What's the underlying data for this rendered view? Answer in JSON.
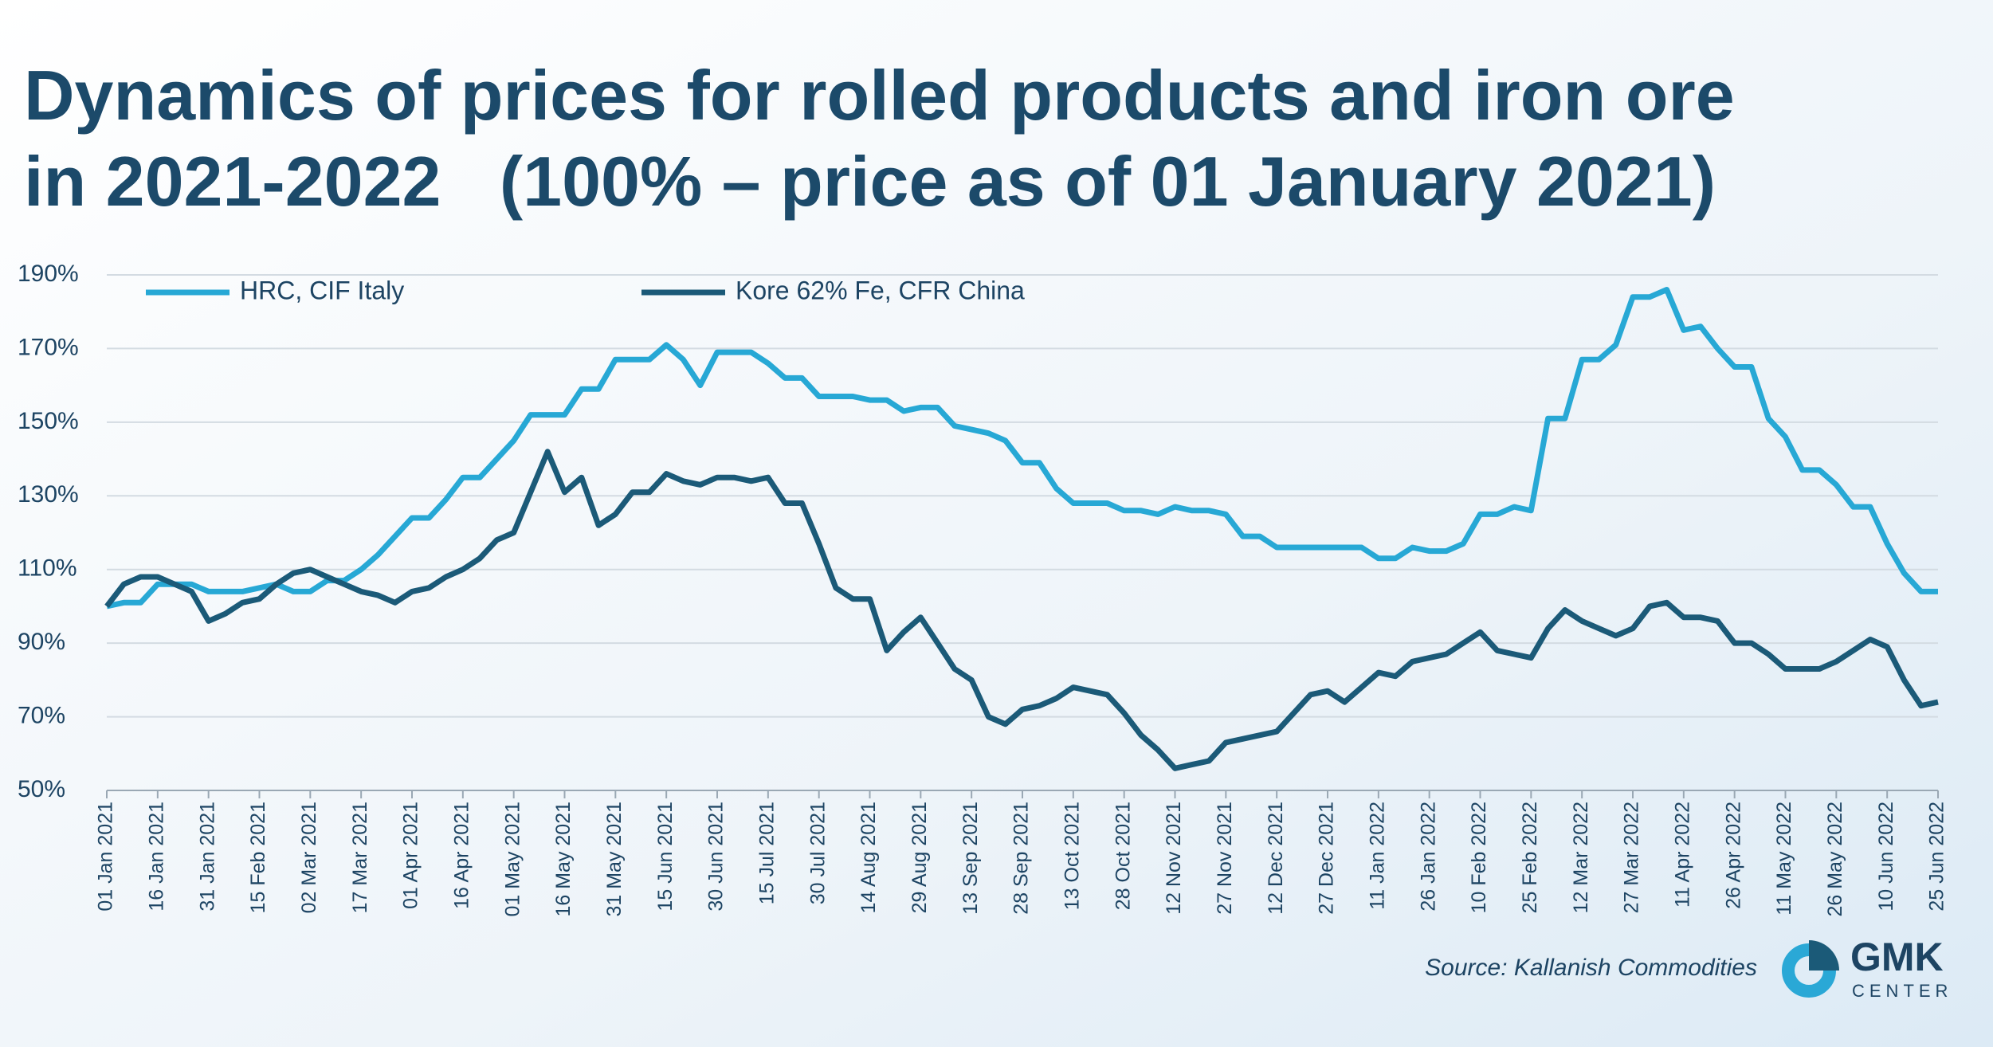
{
  "chart_data": {
    "type": "line",
    "title": [
      "Dynamics of prices for rolled products and iron ore",
      "in 2021-2022   (100% – price as of 01 January 2021)"
    ],
    "source": "Source: Kallanish Commodities",
    "logo": [
      "GMK",
      "CENTER"
    ],
    "x": [
      "01 Jan 2021",
      "06 Jan 2021",
      "11 Jan 2021",
      "16 Jan 2021",
      "21 Jan 2021",
      "26 Jan 2021",
      "31 Jan 2021",
      "05 Feb 2021",
      "10 Feb 2021",
      "15 Feb 2021",
      "20 Feb 2021",
      "25 Feb 2021",
      "02 Mar 2021",
      "07 Mar 2021",
      "12 Mar 2021",
      "17 Mar 2021",
      "22 Mar 2021",
      "27 Mar 2021",
      "01 Apr 2021",
      "06 Apr 2021",
      "11 Apr 2021",
      "16 Apr 2021",
      "21 Apr 2021",
      "26 Apr 2021",
      "01 May 2021",
      "06 May 2021",
      "11 May 2021",
      "16 May 2021",
      "21 May 2021",
      "26 May 2021",
      "31 May 2021",
      "05 Jun 2021",
      "10 Jun 2021",
      "15 Jun 2021",
      "20 Jun 2021",
      "25 Jun 2021",
      "30 Jun 2021",
      "05 Jul 2021",
      "10 Jul 2021",
      "15 Jul 2021",
      "20 Jul 2021",
      "25 Jul 2021",
      "30 Jul 2021",
      "04 Aug 2021",
      "09 Aug 2021",
      "14 Aug 2021",
      "19 Aug 2021",
      "24 Aug 2021",
      "29 Aug 2021",
      "03 Sep 2021",
      "08 Sep 2021",
      "13 Sep 2021",
      "18 Sep 2021",
      "23 Sep 2021",
      "28 Sep 2021",
      "03 Oct 2021",
      "08 Oct 2021",
      "13 Oct 2021",
      "18 Oct 2021",
      "23 Oct 2021",
      "28 Oct 2021",
      "02 Nov 2021",
      "07 Nov 2021",
      "12 Nov 2021",
      "17 Nov 2021",
      "22 Nov 2021",
      "27 Nov 2021",
      "02 Dec 2021",
      "07 Dec 2021",
      "12 Dec 2021",
      "17 Dec 2021",
      "22 Dec 2021",
      "27 Dec 2021",
      "01 Jan 2022",
      "06 Jan 2022",
      "11 Jan 2022",
      "16 Jan 2022",
      "21 Jan 2022",
      "26 Jan 2022",
      "31 Jan 2022",
      "05 Feb 2022",
      "10 Feb 2022",
      "15 Feb 2022",
      "20 Feb 2022",
      "25 Feb 2022",
      "02 Mar 2022",
      "07 Mar 2022",
      "12 Mar 2022",
      "17 Mar 2022",
      "22 Mar 2022",
      "27 Mar 2022",
      "01 Apr 2022",
      "06 Apr 2022",
      "11 Apr 2022",
      "16 Apr 2022",
      "21 Apr 2022",
      "26 Apr 2022",
      "01 May 2022",
      "06 May 2022",
      "11 May 2022",
      "16 May 2022",
      "21 May 2022",
      "26 May 2022",
      "31 May 2022",
      "05 Jun 2022",
      "10 Jun 2022",
      "15 Jun 2022",
      "20 Jun 2022",
      "25 Jun 2022"
    ],
    "series": [
      {
        "name": "HRC, CIF Italy",
        "color": "#27a8d5",
        "values": [
          100,
          101,
          101,
          106,
          106,
          106,
          104,
          104,
          104,
          105,
          106,
          104,
          104,
          107,
          107,
          110,
          114,
          119,
          124,
          124,
          129,
          135,
          135,
          140,
          145,
          152,
          152,
          152,
          159,
          159,
          167,
          167,
          167,
          171,
          167,
          160,
          169,
          169,
          169,
          166,
          162,
          162,
          157,
          157,
          157,
          156,
          156,
          153,
          154,
          154,
          149,
          148,
          147,
          145,
          139,
          139,
          132,
          128,
          128,
          128,
          126,
          126,
          125,
          127,
          126,
          126,
          125,
          119,
          119,
          116,
          116,
          116,
          116,
          116,
          116,
          113,
          113,
          116,
          115,
          115,
          117,
          125,
          125,
          127,
          126,
          151,
          151,
          167,
          167,
          171,
          184,
          184,
          186,
          175,
          176,
          170,
          165,
          165,
          151,
          146,
          137,
          137,
          133,
          127,
          127,
          117,
          109,
          104,
          104
        ]
      },
      {
        "name": "Kore 62% Fe, CFR China",
        "color": "#1b5a78",
        "values": [
          100,
          106,
          108,
          108,
          106,
          104,
          96,
          98,
          101,
          102,
          106,
          109,
          110,
          108,
          106,
          104,
          103,
          101,
          104,
          105,
          108,
          110,
          113,
          118,
          120,
          131,
          142,
          131,
          135,
          122,
          125,
          131,
          131,
          136,
          134,
          133,
          135,
          135,
          134,
          135,
          128,
          128,
          117,
          105,
          102,
          102,
          88,
          93,
          97,
          90,
          83,
          80,
          70,
          68,
          72,
          73,
          75,
          78,
          77,
          76,
          71,
          65,
          61,
          56,
          57,
          58,
          63,
          64,
          65,
          66,
          71,
          76,
          77,
          74,
          78,
          82,
          81,
          85,
          86,
          87,
          90,
          93,
          88,
          87,
          86,
          94,
          99,
          96,
          94,
          92,
          94,
          100,
          101,
          97,
          97,
          96,
          90,
          90,
          87,
          83,
          83,
          83,
          85,
          88,
          91,
          89,
          80,
          73,
          74
        ]
      }
    ],
    "xlim": [
      "01 Jan 2021",
      "25 Jun 2022"
    ],
    "xticks": [
      "01 Jan 2021",
      "16 Jan 2021",
      "31 Jan 2021",
      "15 Feb 2021",
      "02 Mar 2021",
      "17 Mar 2021",
      "01 Apr 2021",
      "16 Apr 2021",
      "01 May 2021",
      "16 May 2021",
      "31 May 2021",
      "15 Jun 2021",
      "30 Jun 2021",
      "15 Jul 2021",
      "30 Jul 2021",
      "14 Aug 2021",
      "29 Aug 2021",
      "13 Sep 2021",
      "28 Sep 2021",
      "13 Oct 2021",
      "28 Oct 2021",
      "12 Nov 2021",
      "27 Nov 2021",
      "12 Dec 2021",
      "27 Dec 2021",
      "11 Jan 2022",
      "26 Jan 2022",
      "10 Feb 2022",
      "25 Feb 2022",
      "12 Mar 2022",
      "27 Mar 2022",
      "11 Apr 2022",
      "26 Apr 2022",
      "11 May 2022",
      "26 May 2022",
      "10 Jun 2022",
      "25 Jun 2022"
    ],
    "ylim": [
      50,
      190
    ],
    "yticks": [
      {
        "value": 50,
        "label": "50%"
      },
      {
        "value": 70,
        "label": "70%"
      },
      {
        "value": 90,
        "label": "90%"
      },
      {
        "value": 110,
        "label": "110%"
      },
      {
        "value": 130,
        "label": "130%"
      },
      {
        "value": 150,
        "label": "150%"
      },
      {
        "value": 170,
        "label": "170%"
      },
      {
        "value": 190,
        "label": "190%"
      }
    ],
    "grid": true
  }
}
